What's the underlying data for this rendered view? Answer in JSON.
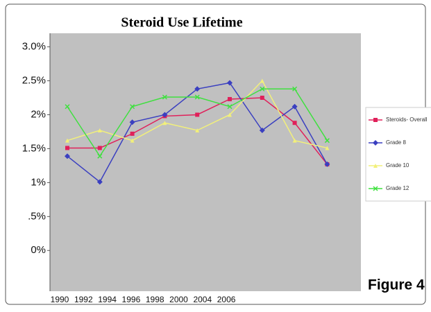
{
  "chart_data": {
    "type": "line",
    "title": "Steroid Use Lifetime",
    "annotation": "Figure 4",
    "categories": [
      "1990",
      "1992",
      "1994",
      "1996",
      "1998",
      "2000",
      "2004",
      "2006",
      null
    ],
    "series": [
      {
        "name": "Steroids- Overall",
        "color": "#e0205a",
        "marker": "square",
        "values": [
          1.51,
          1.51,
          1.72,
          1.98,
          2.0,
          2.23,
          2.25,
          1.88,
          1.27
        ]
      },
      {
        "name": "Grade 8",
        "color": "#3a3fc0",
        "marker": "diamond",
        "values": [
          1.39,
          1.01,
          1.89,
          2.0,
          2.38,
          2.47,
          1.77,
          2.12,
          1.27
        ]
      },
      {
        "name": "Grade 10",
        "color": "#f2f07a",
        "marker": "triangle",
        "values": [
          1.62,
          1.77,
          1.62,
          1.88,
          1.77,
          2.0,
          2.5,
          1.62,
          1.51
        ]
      },
      {
        "name": "Grade 12",
        "color": "#3fe03f",
        "marker": "cross",
        "values": [
          2.12,
          1.39,
          2.12,
          2.26,
          2.26,
          2.12,
          2.38,
          2.38,
          1.62
        ]
      }
    ],
    "ylim": [
      -0.6,
      3.2
    ],
    "yticks": [
      {
        "value": 0,
        "label": "0%"
      },
      {
        "value": 0.5,
        "label": ".5%"
      },
      {
        "value": 1,
        "label": "1%"
      },
      {
        "value": 1.5,
        "label": "1.5%"
      },
      {
        "value": 2,
        "label": "2%"
      },
      {
        "value": 2.5,
        "label": "2.5%"
      },
      {
        "value": 3,
        "label": "3.0%"
      }
    ],
    "legend": "right"
  }
}
